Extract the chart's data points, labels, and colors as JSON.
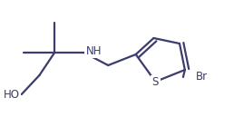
{
  "bg_color": "#ffffff",
  "line_color": "#3c3c6e",
  "line_width": 1.6,
  "fig_width": 2.58,
  "fig_height": 1.29,
  "dpi": 100,
  "label_fontsize": 8.5,
  "HO_label": "HO",
  "NH_label": "NH",
  "S_label": "S",
  "Br_label": "Br"
}
